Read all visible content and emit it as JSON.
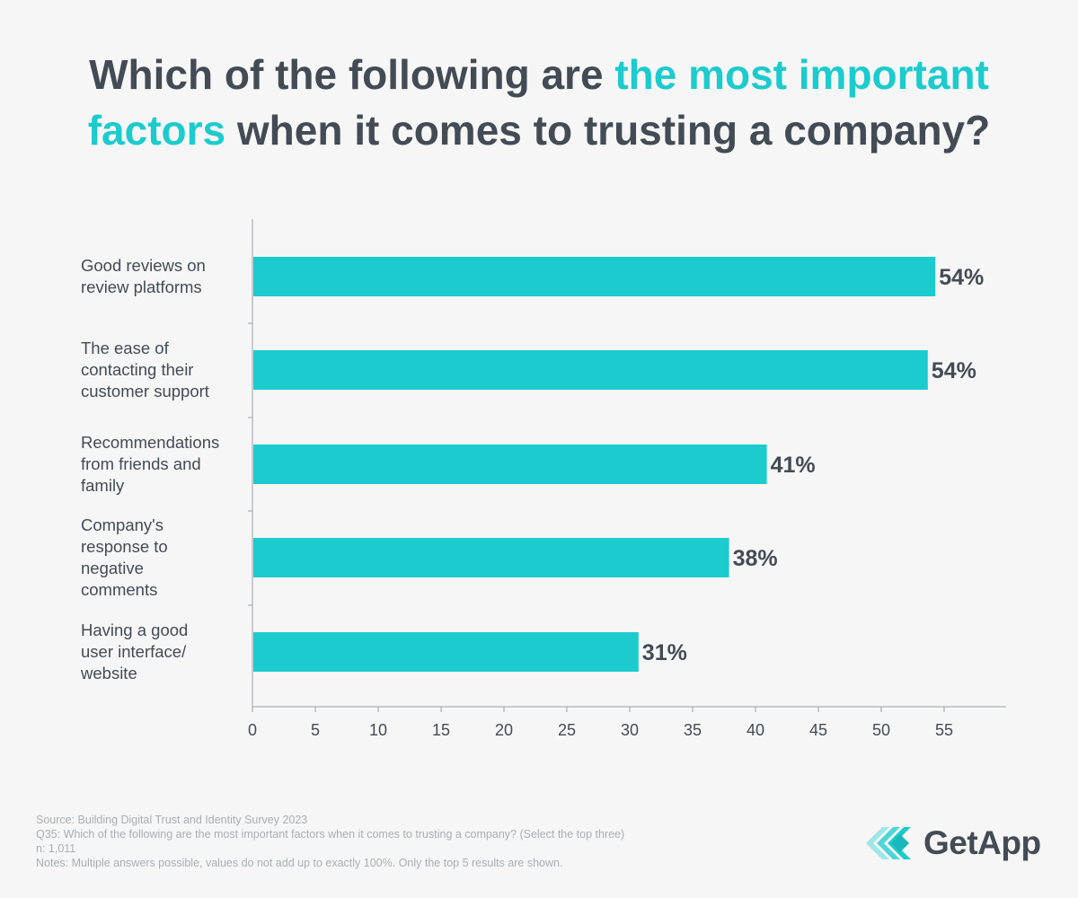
{
  "title": {
    "part1": "Which of the following are ",
    "highlight1": "the most important",
    "highlight2": "factors",
    "part2": " when it comes to trusting a company?"
  },
  "colors": {
    "bar": "#1ccbcd",
    "title_dark": "#434b55",
    "axis": "#9aa0a6",
    "label": "#434b55",
    "footer": "#a9aeb4"
  },
  "chart_data": {
    "type": "bar",
    "orientation": "horizontal",
    "title": "Which of the following are the most important factors when it comes to trusting a company?",
    "categories": [
      [
        "Good reviews on",
        "review platforms"
      ],
      [
        "The ease of",
        "contacting their",
        "customer support"
      ],
      [
        "Recommendations",
        "from friends and",
        "family"
      ],
      [
        "Company's",
        "response to",
        "negative",
        "comments"
      ],
      [
        "Having a good",
        "user interface/",
        "website"
      ]
    ],
    "values": [
      54.3,
      53.7,
      40.9,
      37.9,
      30.7
    ],
    "value_labels": [
      "54%",
      "54%",
      "41%",
      "38%",
      "31%"
    ],
    "xlim": [
      0,
      60
    ],
    "xticks": [
      0,
      5,
      10,
      15,
      20,
      25,
      30,
      35,
      40,
      45,
      50,
      55
    ],
    "xlabel": "",
    "ylabel": "",
    "grid": false,
    "legend": "none"
  },
  "footer": {
    "source": "Source: Building Digital Trust and Identity Survey 2023",
    "question": "Q35: Which of the following are the most important factors when it comes to trusting a company? (Select the top three)",
    "n": "n: 1,011",
    "notes": "Notes: Multiple answers possible, values do not add up to exactly 100%. Only the top 5 results are shown."
  },
  "logo": {
    "brand": "GetApp",
    "icon": "getapp-chevrons-icon"
  }
}
